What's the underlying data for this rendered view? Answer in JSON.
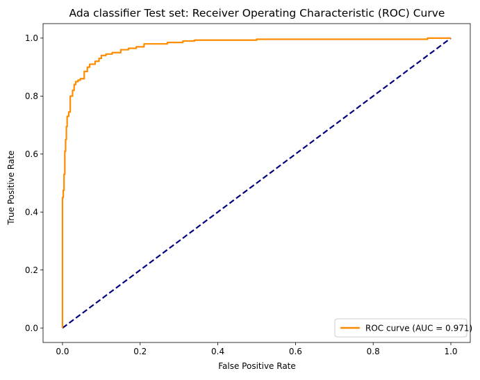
{
  "chart_data": {
    "type": "line",
    "title": "Ada classifier Test set: Receiver Operating Characteristic (ROC) Curve",
    "xlabel": "False Positive Rate",
    "ylabel": "True Positive Rate",
    "xlim": [
      -0.05,
      1.05
    ],
    "ylim": [
      -0.05,
      1.05
    ],
    "xticks": [
      0.0,
      0.2,
      0.4,
      0.6,
      0.8,
      1.0
    ],
    "xtick_labels": [
      "0.0",
      "0.2",
      "0.4",
      "0.6",
      "0.8",
      "1.0"
    ],
    "yticks": [
      0.0,
      0.2,
      0.4,
      0.6,
      0.8,
      1.0
    ],
    "ytick_labels": [
      "0.0",
      "0.2",
      "0.4",
      "0.6",
      "0.8",
      "1.0"
    ],
    "grid": false,
    "legend_position": "lower-right",
    "series": [
      {
        "name": "ROC curve (AUC = 0.971)",
        "color": "#ff8c00",
        "style": "solid",
        "x": [
          0.0,
          0.0,
          0.002,
          0.002,
          0.004,
          0.004,
          0.006,
          0.006,
          0.008,
          0.008,
          0.01,
          0.01,
          0.012,
          0.012,
          0.016,
          0.016,
          0.02,
          0.02,
          0.026,
          0.026,
          0.03,
          0.03,
          0.034,
          0.034,
          0.04,
          0.04,
          0.046,
          0.046,
          0.056,
          0.056,
          0.064,
          0.064,
          0.07,
          0.07,
          0.076,
          0.076,
          0.084,
          0.084,
          0.094,
          0.094,
          0.1,
          0.1,
          0.112,
          0.112,
          0.128,
          0.128,
          0.15,
          0.15,
          0.17,
          0.17,
          0.19,
          0.19,
          0.21,
          0.21,
          0.27,
          0.27,
          0.31,
          0.31,
          0.34,
          0.34,
          0.5,
          0.5,
          0.94,
          0.94,
          1.0
        ],
        "y": [
          0.0,
          0.45,
          0.45,
          0.475,
          0.475,
          0.53,
          0.53,
          0.61,
          0.61,
          0.65,
          0.65,
          0.695,
          0.695,
          0.73,
          0.73,
          0.745,
          0.745,
          0.8,
          0.8,
          0.82,
          0.82,
          0.84,
          0.84,
          0.85,
          0.85,
          0.855,
          0.855,
          0.86,
          0.86,
          0.885,
          0.885,
          0.9,
          0.9,
          0.91,
          0.91,
          0.91,
          0.91,
          0.92,
          0.92,
          0.93,
          0.93,
          0.94,
          0.94,
          0.945,
          0.945,
          0.95,
          0.95,
          0.96,
          0.96,
          0.965,
          0.965,
          0.97,
          0.97,
          0.98,
          0.98,
          0.985,
          0.985,
          0.99,
          0.99,
          0.993,
          0.993,
          0.996,
          0.996,
          1.0,
          1.0
        ]
      },
      {
        "name": "",
        "color": "#000080",
        "style": "dashed",
        "x": [
          0.0,
          1.0
        ],
        "y": [
          0.0,
          1.0
        ]
      }
    ]
  }
}
